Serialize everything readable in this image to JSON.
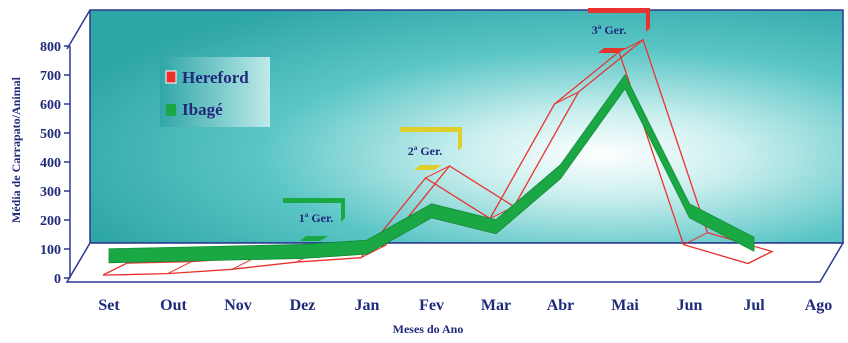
{
  "chart_data": {
    "type": "line",
    "ylabel": "Média de Carrapato/Animal",
    "xlabel": "Meses do Ano",
    "categories": [
      "Set",
      "Out",
      "Nov",
      "Dez",
      "Jan",
      "Fev",
      "Mar",
      "Abr",
      "Mai",
      "Jun",
      "Jul",
      "Ago"
    ],
    "ylim": [
      0,
      800
    ],
    "yticks": [
      0,
      100,
      200,
      300,
      400,
      500,
      600,
      700,
      800
    ],
    "legend": "top-left",
    "series": [
      {
        "name": "Hereford",
        "color": "#e8322e",
        "values": [
          10,
          15,
          30,
          55,
          70,
          345,
          205,
          600,
          780,
          115,
          50,
          null
        ]
      },
      {
        "name": "Ibagé",
        "color": "#1aa844",
        "values": [
          80,
          85,
          90,
          95,
          110,
          235,
          180,
          370,
          680,
          235,
          120,
          null
        ]
      }
    ],
    "annotations": [
      {
        "text": "1ª Ger.",
        "month": "Dez",
        "color": "#1aa844"
      },
      {
        "text": "2ª Ger.",
        "month": "Fev",
        "color": "#e0cf2a"
      },
      {
        "text": "3ª Ger.",
        "month": "Mai",
        "color": "#e8322e"
      }
    ],
    "background_color": "#3fb8b8"
  }
}
